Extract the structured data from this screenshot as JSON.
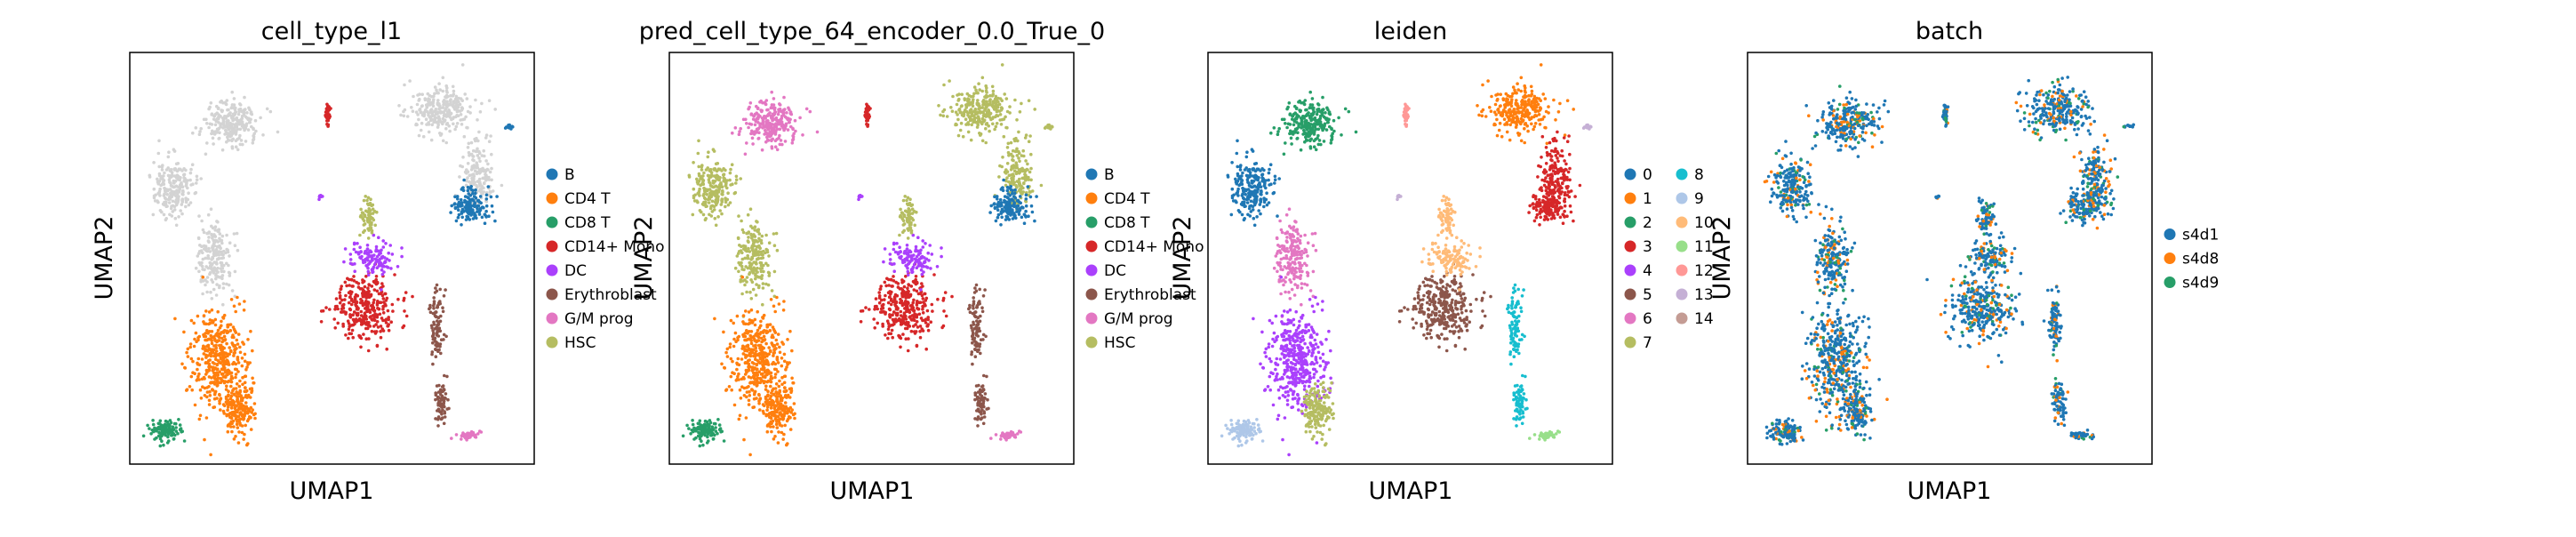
{
  "figure": {
    "background": "#ffffff"
  },
  "chart_data": [
    {
      "type": "scatter",
      "title": "cell_type_l1",
      "xlabel": "UMAP1",
      "ylabel": "UMAP2",
      "legend": {
        "placement": "right",
        "columns": 1,
        "entries": [
          {
            "label": "B",
            "color": "#1f77b4"
          },
          {
            "label": "CD4 T",
            "color": "#ff7f0e"
          },
          {
            "label": "CD8 T",
            "color": "#279e68"
          },
          {
            "label": "CD14+ Mono",
            "color": "#d62728"
          },
          {
            "label": "DC",
            "color": "#aa40fc"
          },
          {
            "label": "Erythroblast",
            "color": "#8c564b"
          },
          {
            "label": "G/M prog",
            "color": "#e377c2"
          },
          {
            "label": "HSC",
            "color": "#b5bd61"
          }
        ]
      }
    },
    {
      "type": "scatter",
      "title": "pred_cell_type_64_encoder_0.0_True_0",
      "xlabel": "UMAP1",
      "ylabel": "UMAP2",
      "legend": {
        "placement": "right",
        "columns": 1,
        "entries": [
          {
            "label": "B",
            "color": "#1f77b4"
          },
          {
            "label": "CD4 T",
            "color": "#ff7f0e"
          },
          {
            "label": "CD8 T",
            "color": "#279e68"
          },
          {
            "label": "CD14+ Mono",
            "color": "#d62728"
          },
          {
            "label": "DC",
            "color": "#aa40fc"
          },
          {
            "label": "Erythroblast",
            "color": "#8c564b"
          },
          {
            "label": "G/M prog",
            "color": "#e377c2"
          },
          {
            "label": "HSC",
            "color": "#b5bd61"
          }
        ]
      }
    },
    {
      "type": "scatter",
      "title": "leiden",
      "xlabel": "UMAP1",
      "ylabel": "UMAP2",
      "legend": {
        "placement": "right",
        "columns": 2,
        "entries": [
          {
            "label": "0",
            "color": "#1f77b4"
          },
          {
            "label": "1",
            "color": "#ff7f0e"
          },
          {
            "label": "2",
            "color": "#279e68"
          },
          {
            "label": "3",
            "color": "#d62728"
          },
          {
            "label": "4",
            "color": "#aa40fc"
          },
          {
            "label": "5",
            "color": "#8c564b"
          },
          {
            "label": "6",
            "color": "#e377c2"
          },
          {
            "label": "7",
            "color": "#b5bd61"
          },
          {
            "label": "8",
            "color": "#17becf"
          },
          {
            "label": "9",
            "color": "#aec7e8"
          },
          {
            "label": "10",
            "color": "#ffbb78"
          },
          {
            "label": "11",
            "color": "#98df8a"
          },
          {
            "label": "12",
            "color": "#ff9896"
          },
          {
            "label": "13",
            "color": "#c5b0d5"
          },
          {
            "label": "14",
            "color": "#c49c94"
          }
        ]
      }
    },
    {
      "type": "scatter",
      "title": "batch",
      "xlabel": "UMAP1",
      "ylabel": "UMAP2",
      "legend": {
        "placement": "right",
        "columns": 1,
        "entries": [
          {
            "label": "s4d1",
            "color": "#1f77b4"
          },
          {
            "label": "s4d8",
            "color": "#ff7f0e"
          },
          {
            "label": "s4d9",
            "color": "#279e68"
          }
        ]
      }
    }
  ]
}
